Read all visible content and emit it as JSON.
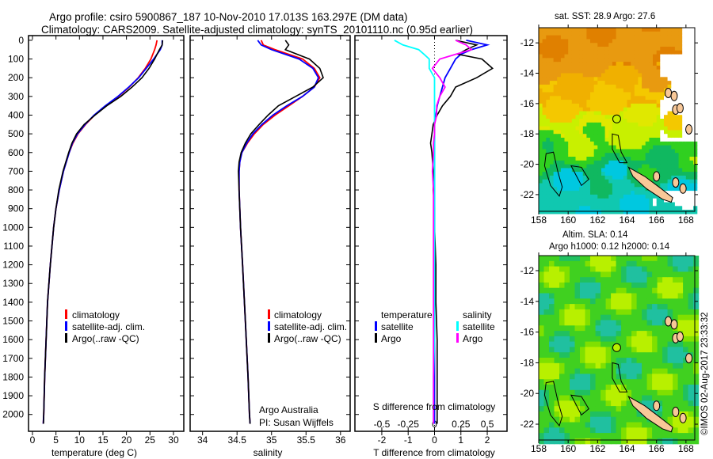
{
  "title_line1": "Argo profile: csiro 5900867_187 10-Nov-2010 17.013S 163.297E (DM data)",
  "title_line2": "Climatology: CARS2009. Satellite-adjusted climatology: synTS_20101110.nc (0.95d earlier)",
  "credit": "Argo Australia",
  "pi": "PI: Susan Wijffels",
  "stamp": "©IMOS 02-Aug-2017 23:33:32",
  "colors": {
    "climatology": "#ff0000",
    "satellite": "#0000ff",
    "argo": "#000000",
    "sal_satellite": "#00ffff",
    "sal_argo": "#ff00ff",
    "island": "#f8c898"
  },
  "chart_data": [
    {
      "type": "line",
      "id": "temperature",
      "xlabel": "temperature (deg C)",
      "xlim": [
        -0.84,
        32.2
      ],
      "ylim": [
        2090,
        -25
      ],
      "xticks": [
        0,
        5,
        10,
        15,
        20,
        25,
        30
      ],
      "yticks": [
        0,
        100,
        200,
        300,
        400,
        500,
        600,
        700,
        800,
        900,
        1000,
        1100,
        1200,
        1300,
        1400,
        1500,
        1600,
        1700,
        1800,
        1900,
        2000
      ],
      "legend": [
        "climatology",
        "satellite-adj. clim.",
        "Argo(..raw -QC)"
      ],
      "depth": [
        0,
        25,
        50,
        100,
        150,
        200,
        250,
        300,
        350,
        400,
        450,
        500,
        550,
        600,
        700,
        800,
        900,
        1000,
        1200,
        1400,
        1600,
        1800,
        2000,
        2050
      ],
      "series": [
        {
          "name": "climatology",
          "color": "#ff0000",
          "values": [
            26.5,
            26.3,
            26.0,
            25.2,
            24.0,
            22.5,
            20.6,
            18.3,
            15.6,
            13.2,
            11.3,
            9.7,
            8.6,
            7.8,
            6.6,
            5.7,
            5.0,
            4.5,
            3.8,
            3.2,
            2.9,
            2.6,
            2.4,
            2.3
          ]
        },
        {
          "name": "satellite-adj. clim.",
          "color": "#0000ff",
          "values": [
            27.6,
            27.6,
            27.2,
            25.8,
            24.2,
            22.6,
            20.5,
            18.2,
            15.5,
            13.1,
            11.2,
            9.6,
            8.5,
            7.8,
            6.6,
            5.7,
            5.0,
            4.5,
            3.8,
            3.2,
            2.9,
            2.6,
            2.4,
            2.3
          ]
        },
        {
          "name": "Argo(..raw -QC)",
          "color": "#000000",
          "values": [
            27.7,
            27.6,
            27.0,
            26.0,
            24.8,
            23.3,
            21.2,
            18.8,
            15.8,
            13.3,
            11.0,
            9.4,
            8.4,
            7.7,
            6.5,
            5.6,
            5.0,
            4.5,
            3.8,
            3.2,
            2.9,
            2.6,
            2.4,
            2.35
          ]
        }
      ]
    },
    {
      "type": "line",
      "id": "salinity",
      "xlabel": "salinity",
      "xlim": [
        33.82,
        36.14
      ],
      "ylim": [
        2090,
        -25
      ],
      "xticks": [
        34,
        34.5,
        35,
        35.5,
        36
      ],
      "legend": [
        "climatology",
        "satellite-adj. clim.",
        "Argo(..raw -QC)"
      ],
      "depth": [
        0,
        25,
        50,
        100,
        150,
        200,
        250,
        300,
        350,
        400,
        450,
        500,
        550,
        600,
        650,
        700,
        800,
        1000,
        1200,
        1500,
        1800,
        2000,
        2050
      ],
      "series": [
        {
          "name": "climatology",
          "color": "#ff0000",
          "values": [
            34.85,
            34.88,
            35.05,
            35.45,
            35.62,
            35.7,
            35.62,
            35.45,
            35.25,
            35.05,
            34.88,
            34.75,
            34.65,
            34.57,
            34.54,
            34.53,
            34.53,
            34.55,
            34.58,
            34.62,
            34.66,
            34.68,
            34.69
          ]
        },
        {
          "name": "satellite-adj. clim.",
          "color": "#0000ff",
          "values": [
            34.8,
            34.85,
            35.0,
            35.4,
            35.6,
            35.68,
            35.62,
            35.45,
            35.22,
            35.02,
            34.86,
            34.73,
            34.64,
            34.57,
            34.54,
            34.53,
            34.53,
            34.55,
            34.58,
            34.62,
            34.66,
            34.68,
            34.69
          ]
        },
        {
          "name": "Argo(..raw -QC)",
          "color": "#000000",
          "values": [
            35.2,
            35.25,
            35.2,
            35.55,
            35.7,
            35.75,
            35.6,
            35.35,
            35.1,
            34.95,
            34.82,
            34.7,
            34.62,
            34.56,
            34.53,
            34.52,
            34.53,
            34.55,
            34.58,
            34.62,
            34.66,
            34.68,
            34.69
          ]
        }
      ]
    },
    {
      "type": "line",
      "id": "difference",
      "xlabel": "T difference from climatology",
      "x2label": "S difference from climatology",
      "xlim": [
        -3.02,
        2.75
      ],
      "xticks": [
        -2,
        -1,
        0,
        1,
        2
      ],
      "x2ticks": [
        -0.5,
        -0.25,
        0,
        0.25,
        0.5
      ],
      "x2tick_labels": [
        "-0.5",
        "-0.25",
        "0",
        "0.25",
        "0.5"
      ],
      "ylim": [
        2090,
        -25
      ],
      "legend": {
        "temperature": "temperature",
        "salinity": "salinity",
        "items": [
          "satellite",
          "Argo",
          "satellite",
          "Argo"
        ]
      },
      "depth": [
        0,
        25,
        50,
        75,
        100,
        150,
        200,
        250,
        300,
        350,
        400,
        450,
        500,
        550,
        600,
        700,
        800,
        900,
        1000,
        1200,
        1400,
        1600,
        1800,
        2000,
        2050
      ],
      "series": [
        {
          "name": "T satellite",
          "color": "#0000ff",
          "scale": 1,
          "values": [
            1.2,
            2.0,
            1.4,
            1.0,
            0.8,
            0.6,
            0.4,
            0.3,
            0.2,
            0.1,
            0.05,
            0,
            0,
            0,
            0,
            0,
            0,
            0,
            0,
            0,
            0,
            0,
            0,
            0,
            0
          ]
        },
        {
          "name": "T Argo",
          "color": "#000000",
          "scale": 1,
          "values": [
            0.8,
            1.6,
            1.2,
            0.9,
            1.8,
            2.2,
            1.6,
            0.8,
            0.6,
            0.3,
            0.1,
            -0.05,
            -0.1,
            -0.15,
            -0.1,
            -0.05,
            -0.05,
            0,
            0,
            0.05,
            0.05,
            0.1,
            0.1,
            0.1,
            0.1
          ]
        },
        {
          "name": "S satellite",
          "color": "#00ffff",
          "scale": 4,
          "values": [
            -0.38,
            -0.3,
            -0.15,
            -0.1,
            -0.05,
            -0.05,
            0,
            0,
            0,
            0,
            0,
            0,
            0,
            0,
            0,
            0,
            0,
            0,
            0,
            0,
            0,
            0,
            -0.01,
            -0.01,
            -0.01
          ]
        },
        {
          "name": "S Argo",
          "color": "#ff00ff",
          "scale": 4,
          "values": [
            0.2,
            0.3,
            0.35,
            0.2,
            0.05,
            -0.02,
            0.05,
            0.1,
            0.05,
            0.02,
            0.02,
            0,
            0,
            -0.01,
            -0.01,
            -0.02,
            -0.01,
            -0.01,
            -0.01,
            -0.01,
            -0.01,
            -0.01,
            -0.01,
            -0.01,
            -0.01
          ]
        }
      ]
    },
    {
      "type": "heatmap",
      "id": "sst-map",
      "title": "sat. SST: 28.9 Argo: 27.6",
      "xlim": [
        158,
        168.6
      ],
      "ylim": [
        -11,
        -23.1
      ],
      "xticks": [
        158,
        160,
        162,
        164,
        166,
        168
      ],
      "yticks": [
        -12,
        -14,
        -16,
        -18,
        -20,
        -22
      ],
      "argo_position": [
        163.297,
        -17.013
      ]
    },
    {
      "type": "heatmap",
      "id": "sla-map",
      "title": "Altim. SLA: 0.14",
      "subtitle": "Argo h1000: 0.12 h2000: 0.14",
      "xlim": [
        158,
        168.6
      ],
      "ylim": [
        -11.02,
        -23.03
      ],
      "xticks": [
        158,
        160,
        162,
        164,
        166,
        168
      ],
      "yticks": [
        -12,
        -14,
        -16,
        -18,
        -20,
        -22
      ],
      "argo_position": [
        163.297,
        -17.013
      ]
    }
  ]
}
